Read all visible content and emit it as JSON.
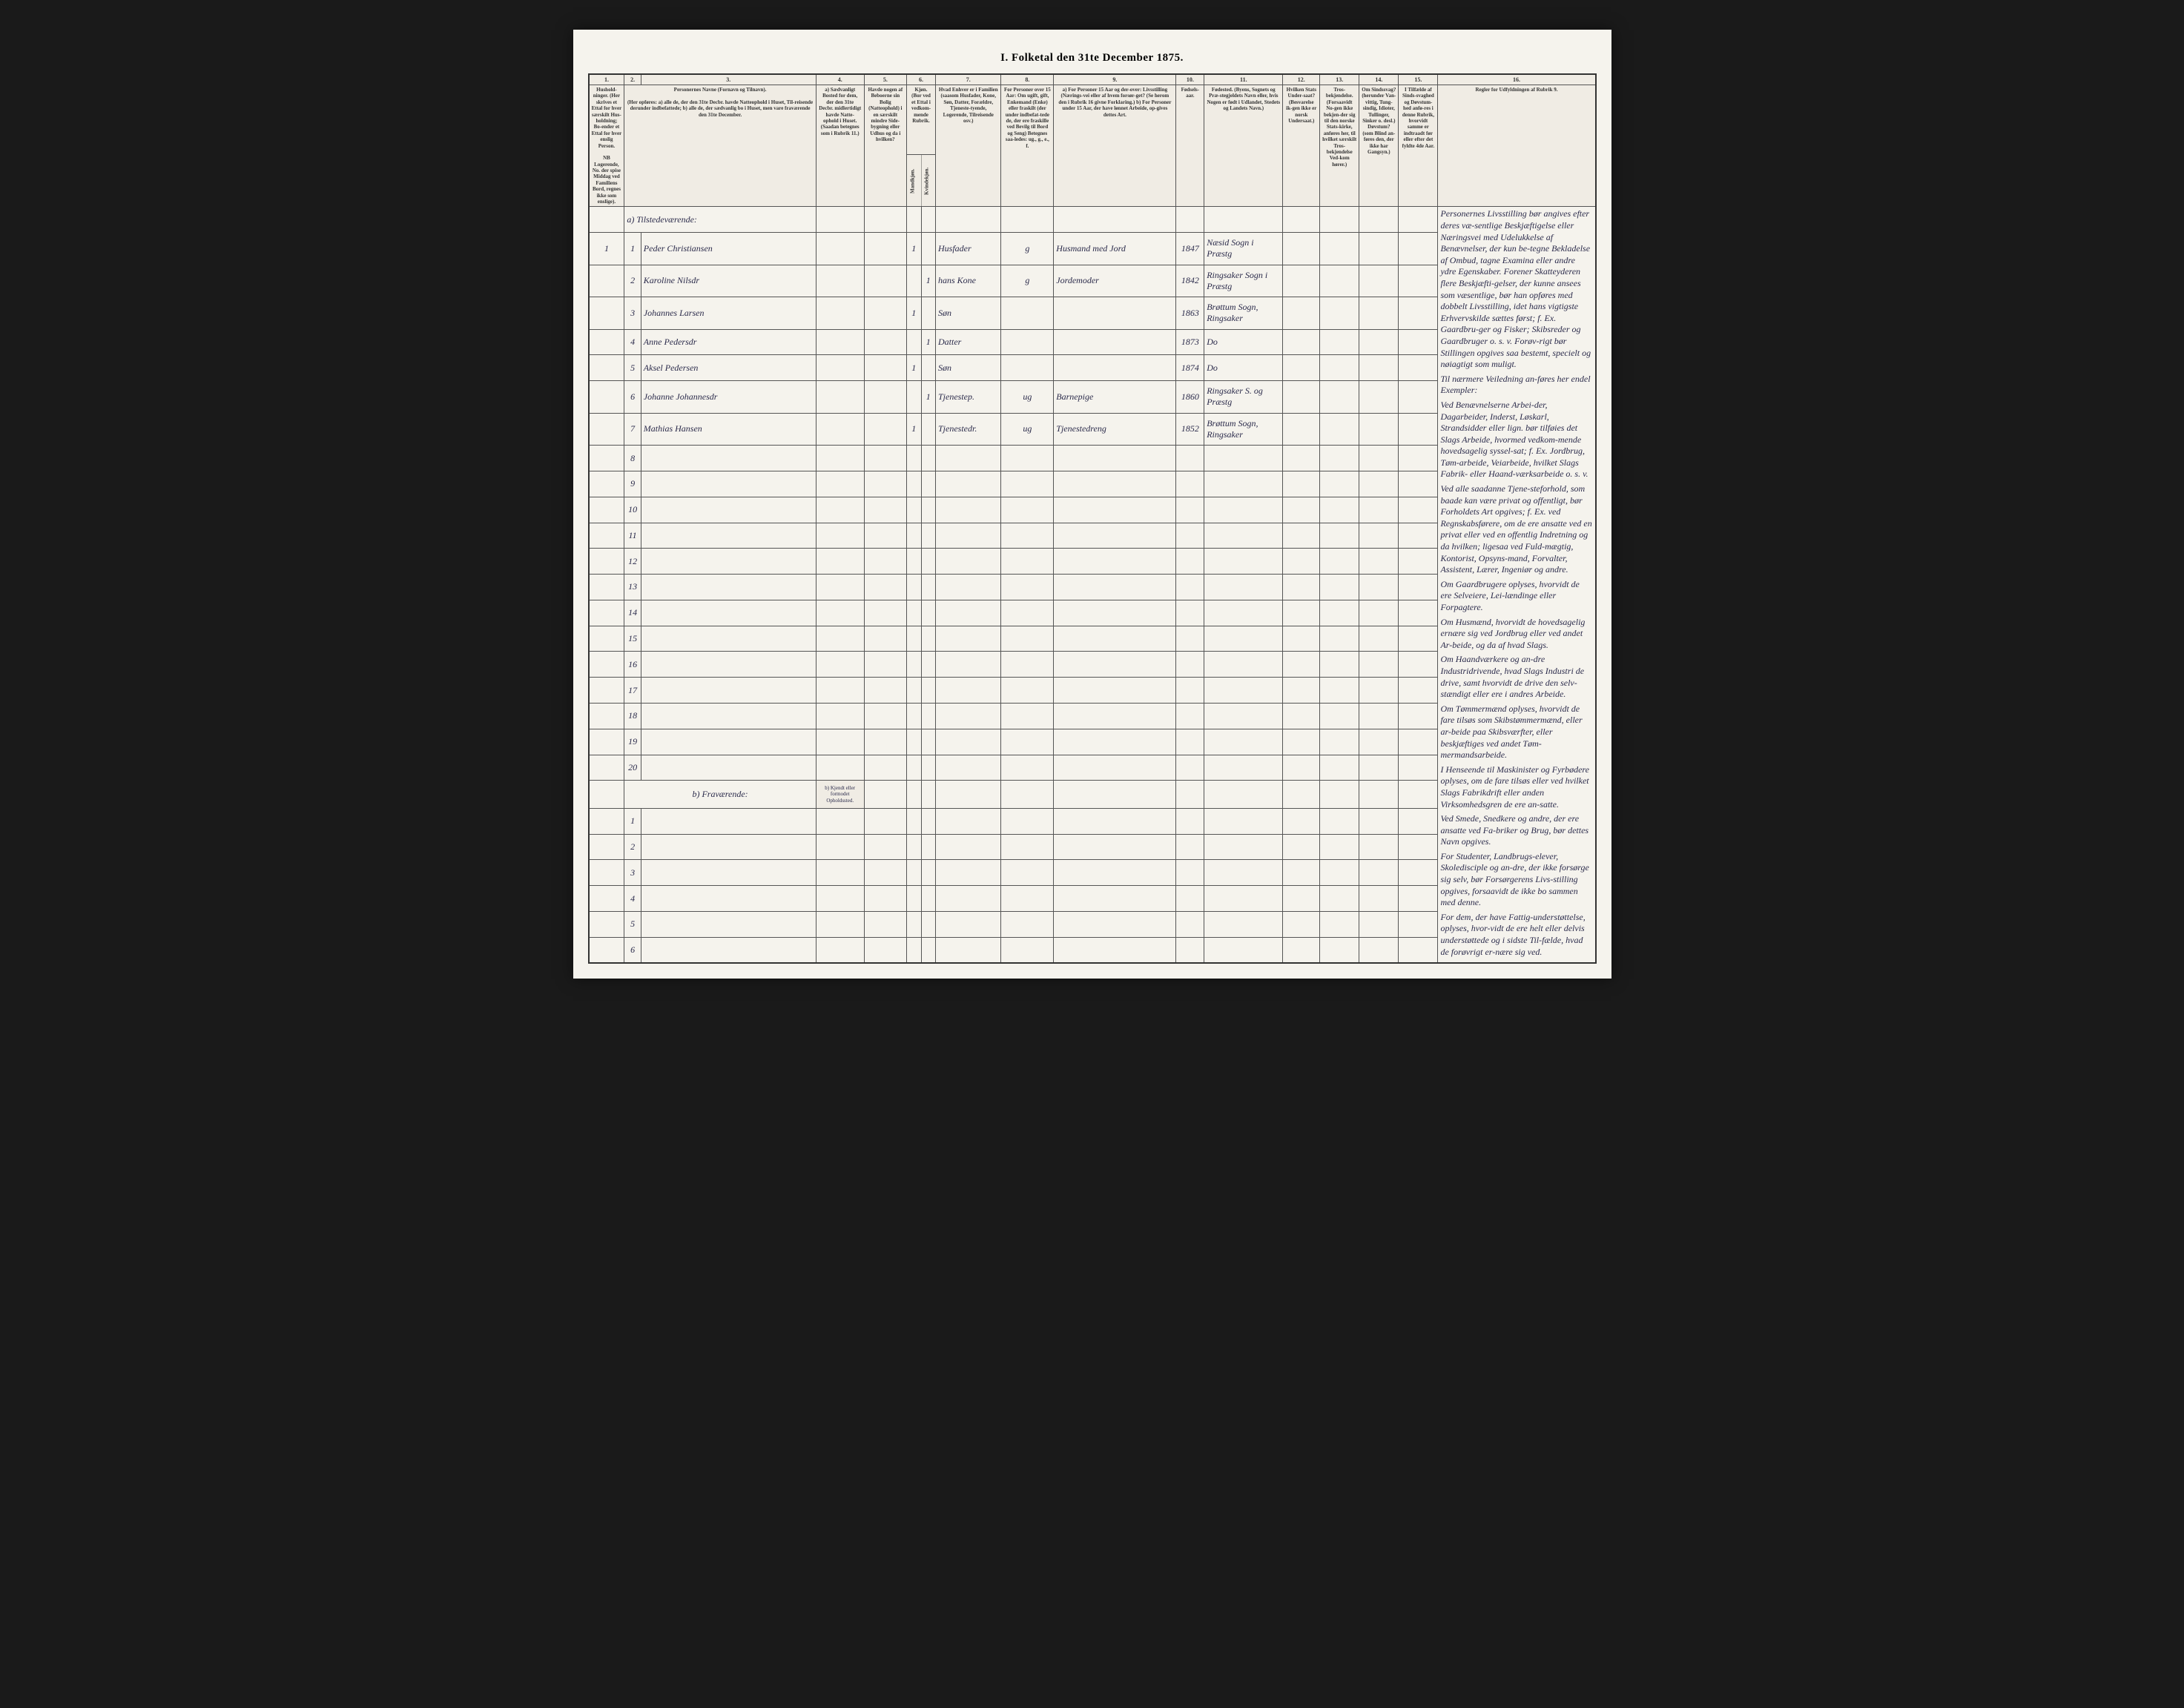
{
  "title": "I. Folketal den 31te December 1875.",
  "columns": {
    "nums": [
      "1.",
      "2.",
      "3.",
      "4.",
      "5.",
      "6.",
      "7.",
      "8.",
      "9.",
      "10.",
      "11.",
      "12.",
      "13.",
      "14.",
      "15.",
      "16."
    ],
    "h1": "Hushold-ninger. (Her skrives et Ettal for hver særskilt Hus-holdning; Bo-ender et Ettal for hver enslig Person.",
    "h1b": "NB Logerende, No. der spise Middag ved Familiens Bord, regnes ikke som enslige).",
    "h3_title": "Personernes Navne (Fornavn og Tilnavn).",
    "h3_sub": "(Her opføres: a) alle de, der den 31te Decbr. havde Natteophold i Huset, Til-reisende derunder indbefattede; b) alle de, der sædvanlig bo i Huset, men vare fraværende den 31te December.",
    "h4": "a) Sædvanligt Bosted for dem, der den 31te Decbr. midlertidigt havde Natte-ophold i Huset. (Saadan betegnes som i Rubrik 11.)",
    "h5": "Havde nogen af Beboerne sin Bolig (Natteophold) i en særskilt mindre Side-bygning eller Udhus og da i hvilken?",
    "h6": "Kjøn. (Bor ved et Ettal i vedkom-mende Rubrik.",
    "h6_m": "Mandkjøn.",
    "h6_k": "Kvindekjøn.",
    "h7": "Hvad Enhver er i Familien (saasom Husfader, Kone, Søn, Datter, Forældre, Tjeneste-tyende, Logerende, Tilreisende osv.)",
    "h8": "For Personer over 15 Aar: Om ugift, gift, Enkemand (Enke) eller fraskilt (der under indbefat-tede de, der ere fraskille ved Bevilg til Bord og Seng) Betegnes saa-ledes: ug., g., e., f.",
    "h9": "a) For Personer 15 Aar og der-over: Livsstilling (Nærings-vei eller af hvem forsør-get? (Se herom den i Rubrik 16 givne Forklaring.) b) For Personer under 15 Aar, der have lønnet Arbeide, op-gives dettes Art.",
    "h10": "Fødsels-aar.",
    "h11": "Fødested. (Byens, Sognets og Præ-stegjeldets Navn eller, hvis Nogen er født i Udlandet, Stedets og Landets Navn.)",
    "h12": "Hvilken Stats Under-saat? (Besvarelse ik-gen ikke er norsk Undersaat.)",
    "h13": "Tros-bekjendelse. (Forsaavidt No-gen ikke bekjen-der sig til den norske Stats-kirke, anføres her, til hvilket særskilt Tros-bekjendelse Ved-kom hører.)",
    "h14": "Om Sindssvag? (herunder Van-vittig, Tung-sindig, Idioter, Tullinger, Sinker o. desl.) Døvstum? (som Blind an-føres den, der ikke har Gangsyn.)",
    "h15": "I Tilfælde af Sinds-svaghed og Døvstum-hed anfø-res i denne Rubrik, hvorvidt samme er indtraadt før eller efter det fyldte 4de Aar.",
    "h16": "Regler for Udfyldningen af Rubrik 9."
  },
  "section_a": "a) Tilstedeværende:",
  "section_b": "b) Fraværende:",
  "section_b_col4": "b) Kjendt eller formodet Opholdssted.",
  "rows": [
    {
      "n": "1",
      "per": "1",
      "name": "Peder Christiansen",
      "m": "1",
      "k": "",
      "rel": "Husfader",
      "civ": "g",
      "occ": "Husmand med Jord",
      "year": "1847",
      "place": "Næsid Sogn i Præstg"
    },
    {
      "n": "",
      "per": "2",
      "name": "Karoline Nilsdr",
      "m": "",
      "k": "1",
      "rel": "hans Kone",
      "civ": "g",
      "occ": "Jordemoder",
      "year": "1842",
      "place": "Ringsaker Sogn i Præstg"
    },
    {
      "n": "",
      "per": "3",
      "name": "Johannes Larsen",
      "m": "1",
      "k": "",
      "rel": "Søn",
      "civ": "",
      "occ": "",
      "year": "1863",
      "place": "Brøttum Sogn, Ringsaker"
    },
    {
      "n": "",
      "per": "4",
      "name": "Anne Pedersdr",
      "m": "",
      "k": "1",
      "rel": "Datter",
      "civ": "",
      "occ": "",
      "year": "1873",
      "place": "Do"
    },
    {
      "n": "",
      "per": "5",
      "name": "Aksel Pedersen",
      "m": "1",
      "k": "",
      "rel": "Søn",
      "civ": "",
      "occ": "",
      "year": "1874",
      "place": "Do"
    },
    {
      "n": "",
      "per": "6",
      "name": "Johanne Johannesdr",
      "m": "",
      "k": "1",
      "rel": "Tjenestep.",
      "civ": "ug",
      "occ": "Barnepige",
      "year": "1860",
      "place": "Ringsaker S. og Præstg"
    },
    {
      "n": "",
      "per": "7",
      "name": "Mathias Hansen",
      "m": "1",
      "k": "",
      "rel": "Tjenestedr.",
      "civ": "ug",
      "occ": "Tjenestedreng",
      "year": "1852",
      "place": "Brøttum Sogn, Ringsaker"
    }
  ],
  "empty_a": [
    "8",
    "9",
    "10",
    "11",
    "12",
    "13",
    "14",
    "15",
    "16",
    "17",
    "18",
    "19",
    "20"
  ],
  "empty_b": [
    "1",
    "2",
    "3",
    "4",
    "5",
    "6"
  ],
  "sidebar_paragraphs": [
    "Personernes Livsstilling bør angives efter deres væ-sentlige Beskjæftigelse eller Næringsvei med Udelukkelse af Benævnelser, der kun be-tegne Bekladelse af Ombud, tagne Examina eller andre ydre Egenskaber. Forener Skatteyderen flere Beskjæfti-gelser, der kunne ansees som væsentlige, bør han opføres med dobbelt Livsstilling, idet hans vigtigste Erhvervskilde sættes først; f. Ex. Gaardbru-ger og Fisker; Skibsreder og Gaardbruger o. s. v. Forøv-rigt bør Stillingen opgives saa bestemt, specielt og nøiagtigt som muligt.",
    "Til nærmere Veiledning an-føres her endel Exempler:",
    "Ved Benævnelserne Arbei-der, Dagarbeider, Inderst, Løskarl, Strandsidder eller lign. bør tilføies det Slags Arbeide, hvormed vedkom-mende hovedsagelig syssel-sat; f. Ex. Jordbrug, Tøm-arbeide, Veiarbeide, hvilket Slags Fabrik- eller Haand-værksarbeide o. s. v.",
    "Ved alle saadanne Tjene-steforhold, som baade kan være privat og offentligt, bør Forholdets Art opgives; f. Ex. ved Regnskabsførere, om de ere ansatte ved en privat eller ved en offentlig Indretning og da hvilken; ligesaa ved Fuld-mægtig, Kontorist, Opsyns-mand, Forvalter, Assistent, Lærer, Ingeniør og andre.",
    "Om Gaardbrugere oplyses, hvorvidt de ere Selveiere, Lei-lændinge eller Forpagtere.",
    "Om Husmænd, hvorvidt de hovedsagelig ernære sig ved Jordbrug eller ved andet Ar-beide, og da af hvad Slags.",
    "Om Haandværkere og an-dre Industridrivende, hvad Slags Industri de drive, samt hvorvidt de drive den selv-stændigt eller ere i andres Arbeide.",
    "Om Tømmermænd oplyses, hvorvidt de fare tilsøs som Skibstømmermænd, eller ar-beide paa Skibsværfter, eller beskjæftiges ved andet Tøm-mermandsarbeide.",
    "I Henseende til Maskinister og Fyrbødere oplyses, om de fare tilsøs eller ved hvilket Slags Fabrikdrift eller anden Virksomhedsgren de ere an-satte.",
    "Ved Smede, Snedkere og andre, der ere ansatte ved Fa-briker og Brug, bør dettes Navn opgives.",
    "For Studenter, Landbrugs-elever, Skoledisciple og an-dre, der ikke forsørge sig selv, bør Forsørgerens Livs-stilling opgives, forsaavidt de ikke bo sammen med denne.",
    "For dem, der have Fattig-understøttelse, oplyses, hvor-vidt de ere helt eller delvis understøttede og i sidste Til-fælde, hvad de forøvrigt er-nære sig ved."
  ]
}
